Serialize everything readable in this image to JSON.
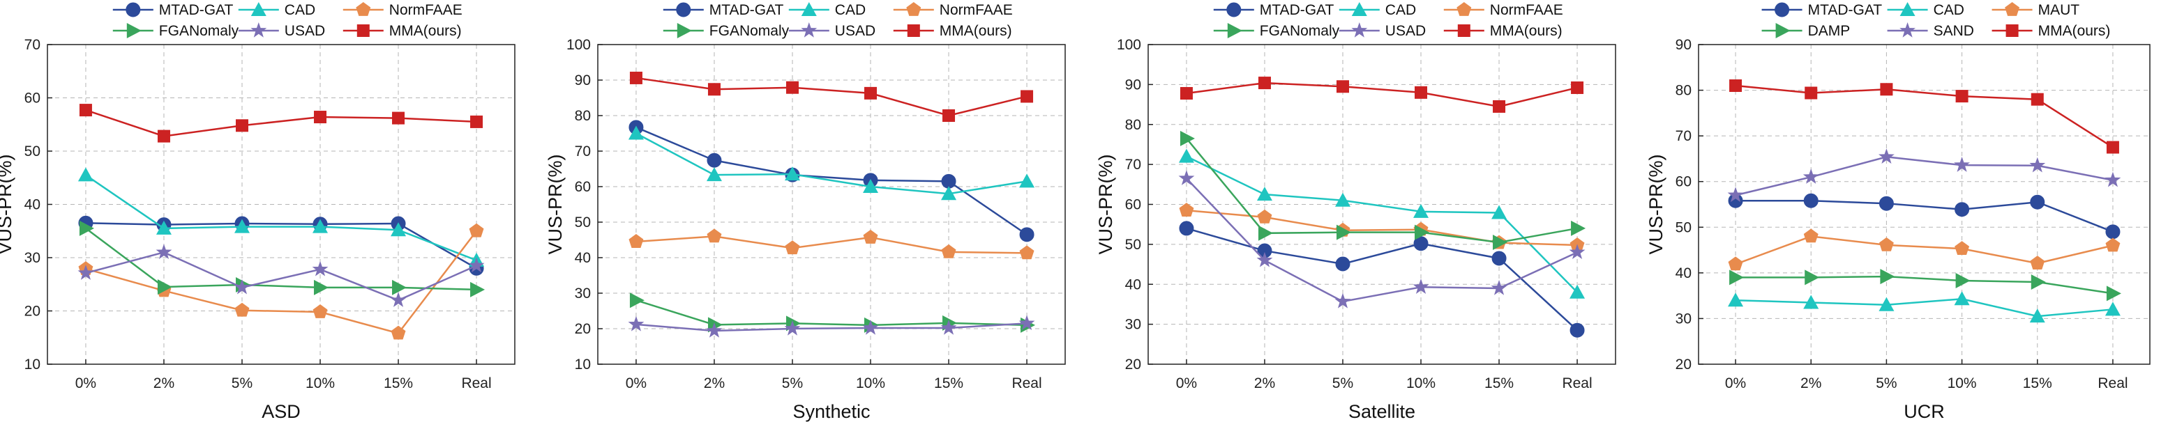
{
  "chart_data": [
    {
      "type": "line",
      "xlabel": "ASD",
      "ylabel": "VUS-PR(%)",
      "categories": [
        "0%",
        "2%",
        "5%",
        "10%",
        "15%",
        "Real"
      ],
      "ylim": [
        10,
        70
      ],
      "yticks": [
        10,
        20,
        30,
        40,
        50,
        60,
        70
      ],
      "grid": true,
      "legend": "top",
      "series": [
        {
          "name": "MTAD-GAT",
          "color": "#2c4a9a",
          "marker": "circle",
          "values": [
            36.5,
            36.2,
            36.4,
            36.3,
            36.4,
            28.0
          ]
        },
        {
          "name": "CAD",
          "color": "#1fc5c0",
          "marker": "triangle-up",
          "values": [
            45.5,
            35.5,
            35.8,
            35.8,
            35.2,
            29.5
          ]
        },
        {
          "name": "NormFAAE",
          "color": "#e88b4d",
          "marker": "pentagon",
          "values": [
            27.9,
            23.8,
            20.1,
            19.8,
            15.8,
            35.0
          ]
        },
        {
          "name": "FGANomaly",
          "color": "#3aa55c",
          "marker": "triangle-right",
          "values": [
            35.5,
            24.5,
            24.9,
            24.4,
            24.4,
            24.0
          ]
        },
        {
          "name": "USAD",
          "color": "#7b6fb5",
          "marker": "star",
          "values": [
            27.1,
            31.0,
            24.4,
            27.8,
            22.0,
            28.5
          ]
        },
        {
          "name": "MMA(ours)",
          "color": "#cc2222",
          "marker": "square",
          "values": [
            57.7,
            52.8,
            54.8,
            56.4,
            56.2,
            55.5
          ]
        }
      ]
    },
    {
      "type": "line",
      "xlabel": "Synthetic",
      "ylabel": "VUS-PR(%)",
      "categories": [
        "0%",
        "2%",
        "5%",
        "10%",
        "15%",
        "Real"
      ],
      "ylim": [
        10,
        100
      ],
      "yticks": [
        10,
        20,
        30,
        40,
        50,
        60,
        70,
        80,
        90,
        100
      ],
      "grid": true,
      "legend": "top",
      "series": [
        {
          "name": "MTAD-GAT",
          "color": "#2c4a9a",
          "marker": "circle",
          "values": [
            76.7,
            67.4,
            63.3,
            61.8,
            61.5,
            46.5
          ]
        },
        {
          "name": "CAD",
          "color": "#1fc5c0",
          "marker": "triangle-up",
          "values": [
            75.0,
            63.3,
            63.5,
            60.0,
            58.0,
            61.5
          ]
        },
        {
          "name": "NormFAAE",
          "color": "#e88b4d",
          "marker": "pentagon",
          "values": [
            44.5,
            46.0,
            42.7,
            45.7,
            41.6,
            41.3
          ]
        },
        {
          "name": "FGANomaly",
          "color": "#3aa55c",
          "marker": "triangle-right",
          "values": [
            28.0,
            21.1,
            21.5,
            21.0,
            21.6,
            21.0
          ]
        },
        {
          "name": "USAD",
          "color": "#7b6fb5",
          "marker": "star",
          "values": [
            21.2,
            19.4,
            20.0,
            20.2,
            20.2,
            21.5
          ]
        },
        {
          "name": "MMA(ours)",
          "color": "#cc2222",
          "marker": "square",
          "values": [
            90.6,
            87.4,
            87.9,
            86.3,
            80.0,
            85.4
          ]
        }
      ]
    },
    {
      "type": "line",
      "xlabel": "Satellite",
      "ylabel": "VUS-PR(%)",
      "categories": [
        "0%",
        "2%",
        "5%",
        "10%",
        "15%",
        "Real"
      ],
      "ylim": [
        20,
        100
      ],
      "yticks": [
        20,
        30,
        40,
        50,
        60,
        70,
        80,
        90,
        100
      ],
      "grid": true,
      "legend": "top",
      "series": [
        {
          "name": "MTAD-GAT",
          "color": "#2c4a9a",
          "marker": "circle",
          "values": [
            54.0,
            48.4,
            45.1,
            50.2,
            46.5,
            28.5
          ]
        },
        {
          "name": "CAD",
          "color": "#1fc5c0",
          "marker": "triangle-up",
          "values": [
            72.0,
            62.5,
            61.0,
            58.2,
            57.9,
            38.0
          ]
        },
        {
          "name": "NormFAAE",
          "color": "#e88b4d",
          "marker": "pentagon",
          "values": [
            58.5,
            56.8,
            53.5,
            53.7,
            50.4,
            49.8
          ]
        },
        {
          "name": "FGANomaly",
          "color": "#3aa55c",
          "marker": "triangle-right",
          "values": [
            76.5,
            52.8,
            53.0,
            53.0,
            50.5,
            54.0
          ]
        },
        {
          "name": "USAD",
          "color": "#7b6fb5",
          "marker": "star",
          "values": [
            66.5,
            46.0,
            35.7,
            39.3,
            39.0,
            48.0
          ]
        },
        {
          "name": "MMA(ours)",
          "color": "#cc2222",
          "marker": "square",
          "values": [
            87.8,
            90.4,
            89.5,
            88.0,
            84.5,
            89.2
          ]
        }
      ]
    },
    {
      "type": "line",
      "xlabel": "UCR",
      "ylabel": "VUS-PR(%)",
      "categories": [
        "0%",
        "2%",
        "5%",
        "10%",
        "15%",
        "Real"
      ],
      "ylim": [
        20,
        90
      ],
      "yticks": [
        20,
        30,
        40,
        50,
        60,
        70,
        80,
        90
      ],
      "grid": true,
      "legend": "top",
      "series": [
        {
          "name": "MTAD-GAT",
          "color": "#2c4a9a",
          "marker": "circle",
          "values": [
            55.8,
            55.8,
            55.2,
            53.9,
            55.5,
            49.0
          ]
        },
        {
          "name": "CAD",
          "color": "#1fc5c0",
          "marker": "triangle-up",
          "values": [
            34.0,
            33.5,
            33.0,
            34.3,
            30.5,
            32.0
          ]
        },
        {
          "name": "MAUT",
          "color": "#e88b4d",
          "marker": "pentagon",
          "values": [
            41.9,
            48.0,
            46.1,
            45.3,
            42.1,
            46.0
          ]
        },
        {
          "name": "DAMP",
          "color": "#3aa55c",
          "marker": "triangle-right",
          "values": [
            39.0,
            39.0,
            39.2,
            38.3,
            38.0,
            35.5
          ]
        },
        {
          "name": "SAND",
          "color": "#7b6fb5",
          "marker": "star",
          "values": [
            57.0,
            61.0,
            65.4,
            63.6,
            63.5,
            60.3
          ]
        },
        {
          "name": "MMA(ours)",
          "color": "#cc2222",
          "marker": "square",
          "values": [
            81.0,
            79.4,
            80.2,
            78.7,
            78.0,
            67.5
          ]
        }
      ]
    }
  ]
}
